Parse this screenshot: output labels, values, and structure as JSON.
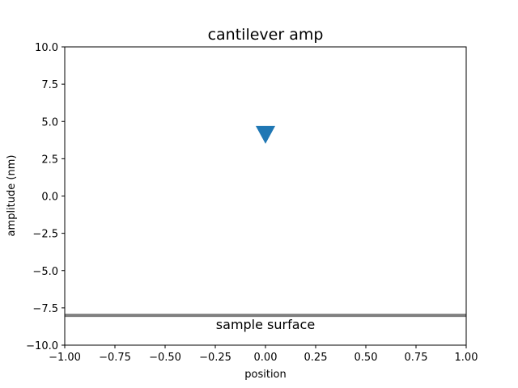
{
  "chart_data": {
    "type": "scatter",
    "title": "cantilever amp",
    "xlabel": "position",
    "ylabel": "amplitude (nm)",
    "xlim": [
      -1.0,
      1.0
    ],
    "ylim": [
      -10.0,
      10.0
    ],
    "x_ticks": [
      -1.0,
      -0.75,
      -0.5,
      -0.25,
      0.0,
      0.25,
      0.5,
      0.75,
      1.0
    ],
    "x_tick_labels": [
      "−1.00",
      "−0.75",
      "−0.50",
      "−0.25",
      "0.00",
      "0.25",
      "0.50",
      "0.75",
      "1.00"
    ],
    "y_ticks": [
      -10.0,
      -7.5,
      -5.0,
      -2.5,
      0.0,
      2.5,
      5.0,
      7.5,
      10.0
    ],
    "y_tick_labels": [
      "−10.0",
      "−7.5",
      "−5.0",
      "−2.5",
      "0.0",
      "2.5",
      "5.0",
      "7.5",
      "10.0"
    ],
    "grid": false,
    "series": [
      {
        "marker": "triangle-down",
        "color": "#1f77b4",
        "points": [
          {
            "x": 0.0,
            "y": 4.1
          }
        ]
      }
    ],
    "hline": {
      "y": -8.0,
      "color": "#808080"
    },
    "annotations": [
      {
        "text": "sample surface",
        "x": 0.0,
        "y": -8.6
      }
    ]
  }
}
